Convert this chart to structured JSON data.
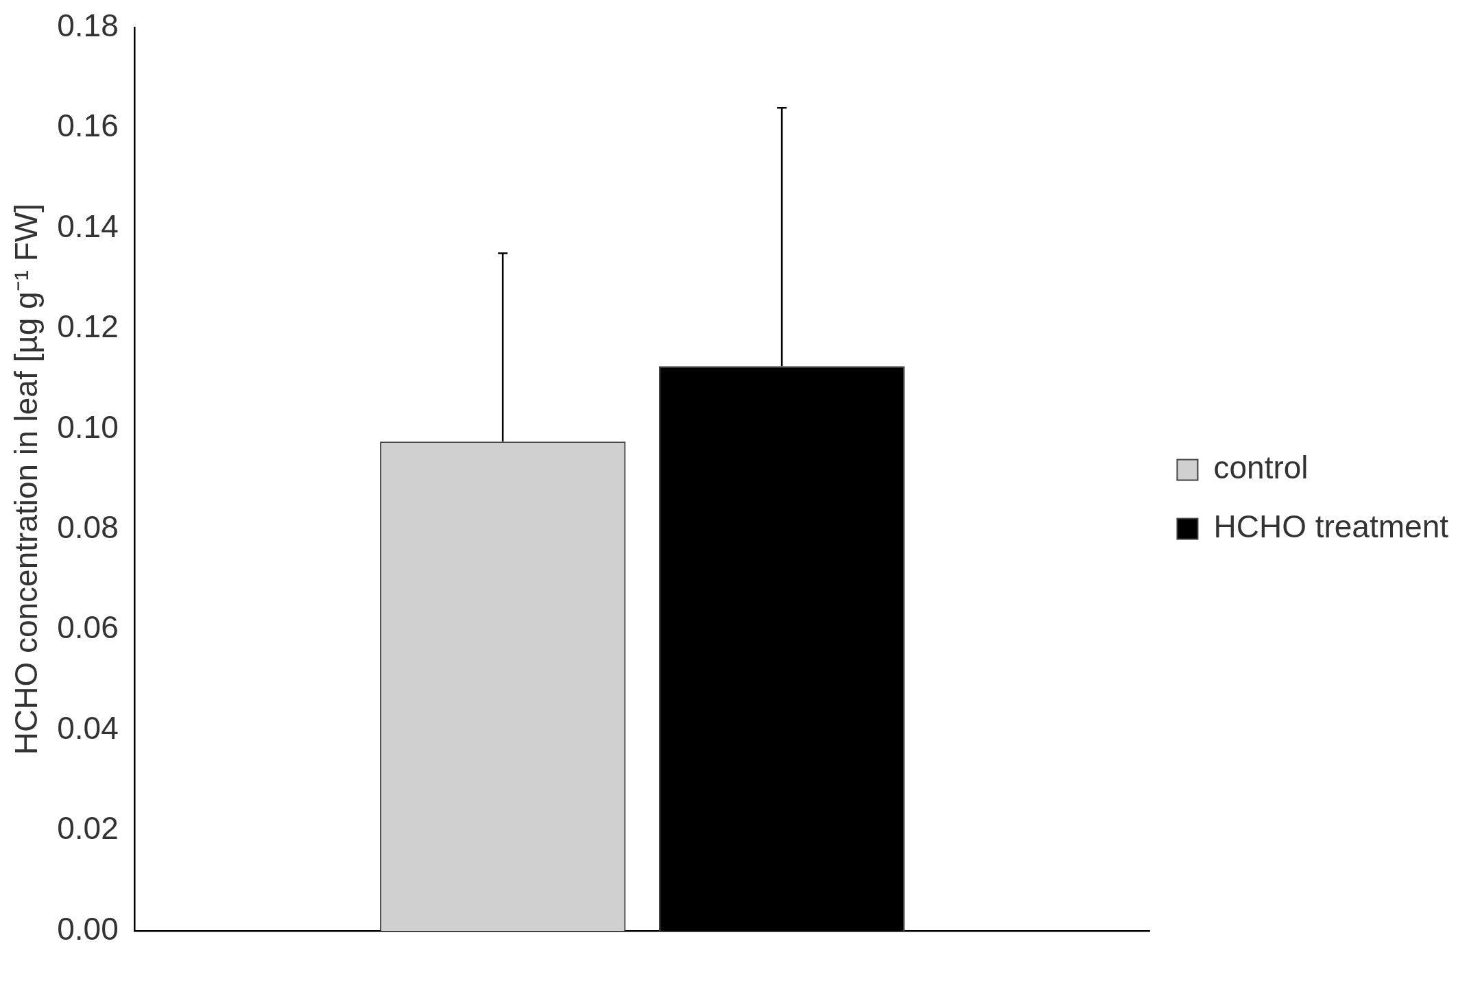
{
  "chart_data": {
    "type": "bar",
    "ylabel": "HCHO concentration in leaf [µg g⁻¹ FW]",
    "categories": [
      null
    ],
    "series": [
      {
        "name": "control",
        "color": "#d0d0d0",
        "values": [
          0.0975
        ],
        "errors": [
          [
            0.0975,
            0.135
          ]
        ]
      },
      {
        "name": "HCHO treatment",
        "color": "#000000",
        "values": [
          0.1125
        ],
        "errors": [
          [
            0.1125,
            0.164
          ]
        ]
      }
    ],
    "ylim": [
      0,
      0.18
    ],
    "yticks": [
      {
        "value": 0,
        "label": "0.00"
      },
      {
        "value": 0.02,
        "label": "0.02"
      },
      {
        "value": 0.04,
        "label": "0.04"
      },
      {
        "value": 0.06,
        "label": "0.06"
      },
      {
        "value": 0.08,
        "label": "0.08"
      },
      {
        "value": 0.1,
        "label": "0.10"
      },
      {
        "value": 0.12,
        "label": "0.12"
      },
      {
        "value": 0.14,
        "label": "0.14"
      },
      {
        "value": 0.16,
        "label": "0.16"
      },
      {
        "value": 0.18,
        "label": "0.18"
      }
    ],
    "grid": false,
    "legend": "right"
  }
}
